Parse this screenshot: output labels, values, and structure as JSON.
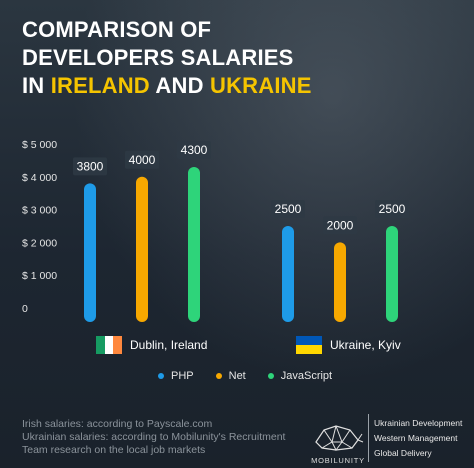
{
  "title": {
    "line1": "COMPARISON OF",
    "line2": "DEVELOPERS SALARIES",
    "line3_prefix": "IN",
    "highlight1": "IRELAND",
    "connector": "AND",
    "highlight2": "UKRAINE"
  },
  "colors": {
    "highlight": "#f5c400",
    "php": "#1e9be8",
    "net": "#f7a800",
    "javascript": "#2ed47a",
    "label_bg": "#2e3944"
  },
  "chart_data": {
    "type": "bar",
    "groups": [
      "Dublin, Ireland",
      "Ukraine, Kyiv"
    ],
    "series": [
      {
        "name": "PHP",
        "values": [
          3800,
          2500
        ]
      },
      {
        "name": "Net",
        "values": [
          4000,
          2000
        ]
      },
      {
        "name": "JavaScript",
        "values": [
          4300,
          2500
        ]
      }
    ],
    "data_labels": [
      [
        "3800",
        "4000",
        "4300"
      ],
      [
        "2500",
        "2000",
        "2500"
      ]
    ],
    "y_ticks": [
      "$ 5 000",
      "$ 4 000",
      "$ 3 000",
      "$ 2 000",
      "$ 1 000",
      "0"
    ],
    "ylim": [
      0,
      5000
    ],
    "legend": "bottom"
  },
  "cities": {
    "ireland": "Dublin, Ireland",
    "ukraine": "Ukraine, Kyiv"
  },
  "legend": {
    "php": "PHP",
    "net": "Net",
    "javascript": "JavaScript"
  },
  "footer": {
    "source1": "Irish salaries: according to Payscale.com",
    "source2": "Ukrainian salaries: according to Mobilunity's Recruitment",
    "source3": "Team research on the local job markets",
    "brand": "MOBILUNITY",
    "service1": "Ukrainian Development",
    "service2": "Western Management",
    "service3": "Global Delivery"
  }
}
